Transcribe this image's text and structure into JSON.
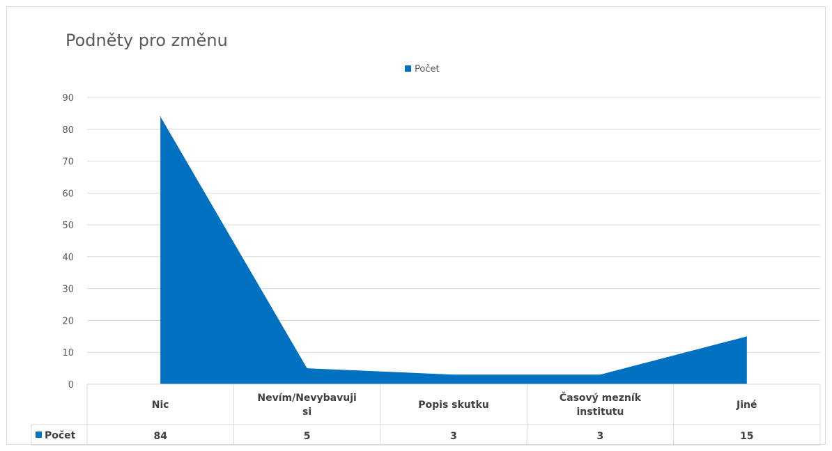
{
  "chart_data": {
    "type": "area",
    "title": "Podněty pro změnu",
    "categories": [
      "Nic",
      "Nevím/Nevybavuji si",
      "Popis skutku",
      "Časový mezník institutu",
      "Jiné"
    ],
    "series": [
      {
        "name": "Počet",
        "values": [
          84,
          5,
          3,
          3,
          15
        ]
      }
    ],
    "ylim": [
      0,
      90
    ],
    "yticks": [
      0,
      10,
      20,
      30,
      40,
      50,
      60,
      70,
      80,
      90
    ],
    "grid": true,
    "legend": "top-center",
    "data_table": true,
    "colors": {
      "series": "#0070C0",
      "grid": "#d9d9d9",
      "text": "#595959"
    }
  }
}
